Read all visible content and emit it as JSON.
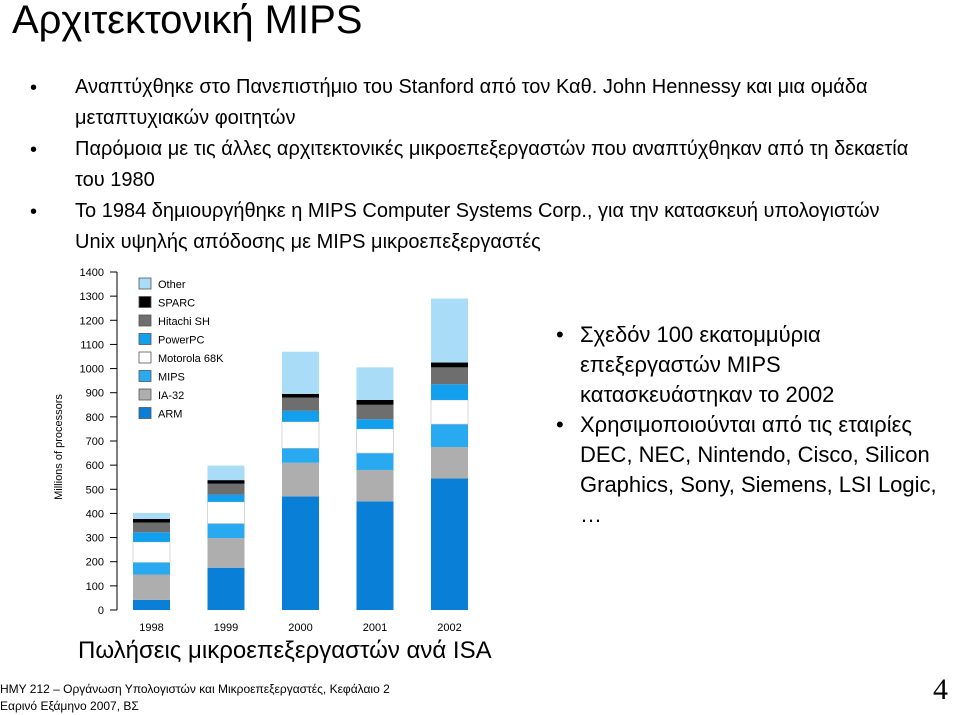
{
  "slide": {
    "title": "Αρχιτεκτονική MIPS",
    "bullet_glyph": "•",
    "bullets": [
      "Αναπτύχθηκε στο Πανεπιστήμιο του Stanford από τον Καθ. John Hennessy και μια ομάδα μεταπτυχιακών φοιτητών",
      "Παρόμοια με τις άλλες αρχιτεκτονικές μικροεπεξεργαστών που αναπτύχθηκαν από τη δεκαετία του 1980",
      "Το 1984 δημιουργήθηκε η MIPS Computer Systems Corp., για την κατασκευή υπολογιστών Unix υψηλής απόδοσης με MIPS μικροεπεξεργαστές"
    ],
    "side_bullets": [
      "Σχεδόν 100 εκατομμύρια επεξεργαστών MIPS κατασκευάστηκαν το 2002",
      "Χρησιμοποιούνται από τις εταιρίες DEC, NEC, Nintendo, Cisco, Silicon Graphics, Sony, Siemens, LSI Logic, …"
    ],
    "caption": "Πωλήσεις μικροεπεξεργαστών ανά ISA",
    "footer_line1": "ΗΜΥ 212 – Οργάνωση Υπολογιστών και Μικροεπεξεργαστές, Κεφάλαιο 2",
    "footer_line2": "Εαρινό Εξάμηνο 2007, ΒΣ",
    "page_number": "4"
  },
  "chart_data": {
    "type": "bar",
    "stacked": true,
    "ylabel": "Millions of processors",
    "ylim": [
      0,
      1400
    ],
    "yticks": [
      0,
      100,
      200,
      300,
      400,
      500,
      600,
      700,
      800,
      900,
      1000,
      1100,
      1200,
      1300,
      1400
    ],
    "categories": [
      "1998",
      "1999",
      "2000",
      "2001",
      "2002"
    ],
    "legend_position": "top-left",
    "series": [
      {
        "name": "ARM",
        "color": "#0a7fd8",
        "values": [
          42,
          175,
          470,
          450,
          545
        ]
      },
      {
        "name": "IA-32",
        "color": "#aeaeae",
        "values": [
          105,
          123,
          140,
          130,
          130
        ]
      },
      {
        "name": "MIPS",
        "color": "#29aaf0",
        "values": [
          50,
          60,
          60,
          70,
          95
        ]
      },
      {
        "name": "Motorola 68K",
        "color": "#ffffff",
        "values": [
          85,
          90,
          110,
          100,
          100
        ]
      },
      {
        "name": "PowerPC",
        "color": "#119fee",
        "values": [
          40,
          30,
          45,
          40,
          65
        ]
      },
      {
        "name": "Hitachi SH",
        "color": "#6e6e6e",
        "values": [
          40,
          45,
          55,
          60,
          70
        ]
      },
      {
        "name": "SPARC",
        "color": "#000000",
        "values": [
          15,
          15,
          15,
          20,
          20
        ]
      },
      {
        "name": "Other",
        "color": "#a8dcf7",
        "values": [
          25,
          60,
          175,
          135,
          265
        ]
      }
    ]
  }
}
